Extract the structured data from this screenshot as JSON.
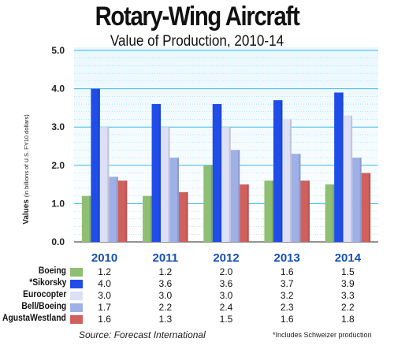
{
  "header": {
    "title": "Rotary-Wing Aircraft",
    "subtitle": "Value of Production, 2010-14"
  },
  "source": "Source:  Forecast International",
  "footnote": "*Includes Schweizer production",
  "chart_data": {
    "type": "bar",
    "title": "Rotary-Wing Aircraft",
    "subtitle": "Value of Production, 2010-14",
    "ylabel": "Values",
    "ylabel_units": "(in billions of U.S. FY10 dollars)",
    "ylim": [
      0,
      5
    ],
    "yticks": [
      "0.0",
      "1.0",
      "2.0",
      "3.0",
      "4.0",
      "5.0"
    ],
    "grid": true,
    "categories": [
      "2010",
      "2011",
      "2012",
      "2013",
      "2014"
    ],
    "series": [
      {
        "name": "Boeing",
        "color": "#8fbf73",
        "values": [
          1.2,
          1.2,
          2.0,
          1.6,
          1.5
        ],
        "labels": [
          "1.2",
          "1.2",
          "2.0",
          "1.6",
          "1.5"
        ]
      },
      {
        "name": "*Sikorsky",
        "color": "#1f4de8",
        "values": [
          4.0,
          3.6,
          3.6,
          3.7,
          3.9
        ],
        "labels": [
          "4.0",
          "3.6",
          "3.6",
          "3.7",
          "3.9"
        ]
      },
      {
        "name": "Eurocopter",
        "color": "#dcdff6",
        "values": [
          3.0,
          3.0,
          3.0,
          3.2,
          3.3
        ],
        "labels": [
          "3.0",
          "3.0",
          "3.0",
          "3.2",
          "3.3"
        ]
      },
      {
        "name": "Bell/Boeing",
        "color": "#9fb0e6",
        "values": [
          1.7,
          2.2,
          2.4,
          2.3,
          2.2
        ],
        "labels": [
          "1.7",
          "2.2",
          "2.4",
          "2.3",
          "2.2"
        ]
      },
      {
        "name": "AgustaWestland",
        "color": "#d0605c",
        "values": [
          1.6,
          1.3,
          1.5,
          1.6,
          1.8
        ],
        "labels": [
          "1.6",
          "1.3",
          "1.5",
          "1.6",
          "1.8"
        ]
      }
    ],
    "legend": "table-below"
  }
}
